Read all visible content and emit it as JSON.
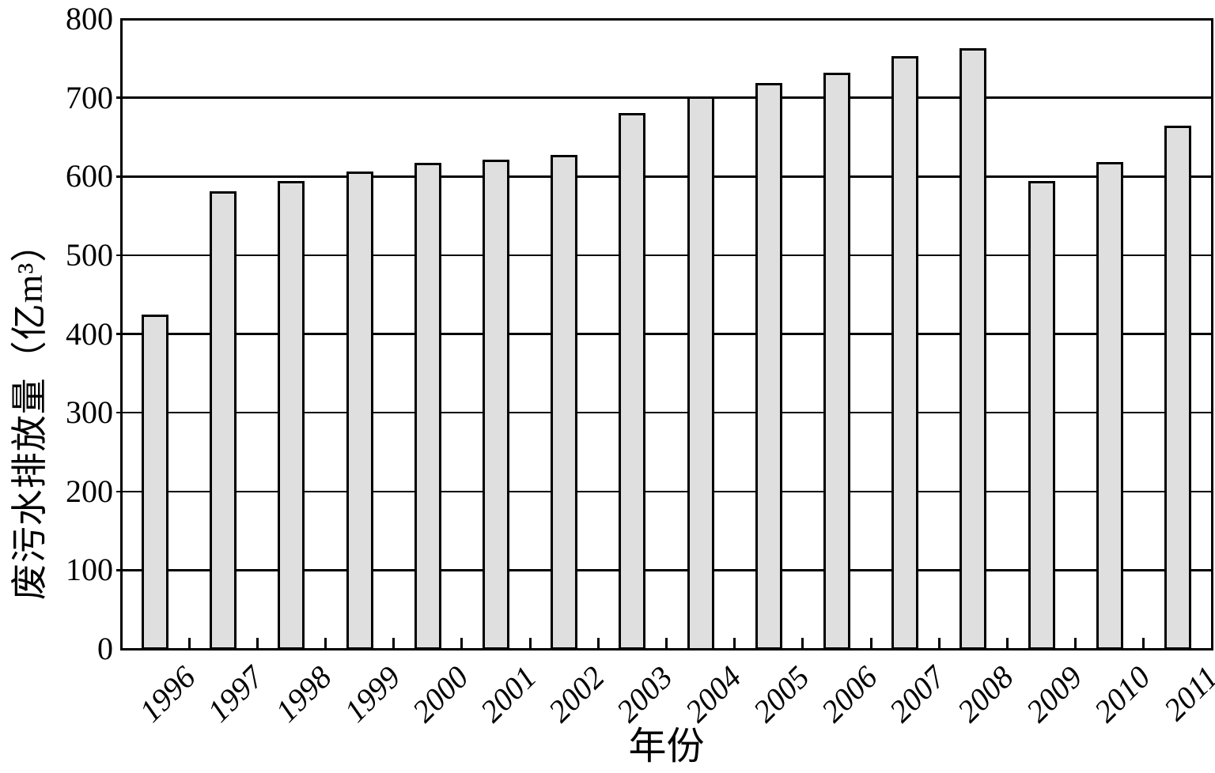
{
  "chart_data": {
    "type": "bar",
    "title": "",
    "xlabel": "年份",
    "ylabel": "废污水排放量（亿m³）",
    "categories": [
      "1996",
      "1997",
      "1998",
      "1999",
      "2000",
      "2001",
      "2002",
      "2003",
      "2004",
      "2005",
      "2006",
      "2007",
      "2008",
      "2009",
      "2010",
      "2011"
    ],
    "values": [
      423,
      580,
      593,
      605,
      616,
      620,
      626,
      679,
      700,
      717,
      730,
      751,
      761,
      593,
      617,
      663
    ],
    "ylim": [
      0,
      800
    ],
    "ytick_step": 100,
    "yticks": [
      0,
      100,
      200,
      300,
      400,
      500,
      600,
      700,
      800
    ],
    "grid": "horizontal",
    "legend": "none",
    "bar_fill": "#dfdfdf",
    "bar_stroke": "#000000",
    "background": "#ffffff",
    "x_label_rotation_deg": -45
  }
}
